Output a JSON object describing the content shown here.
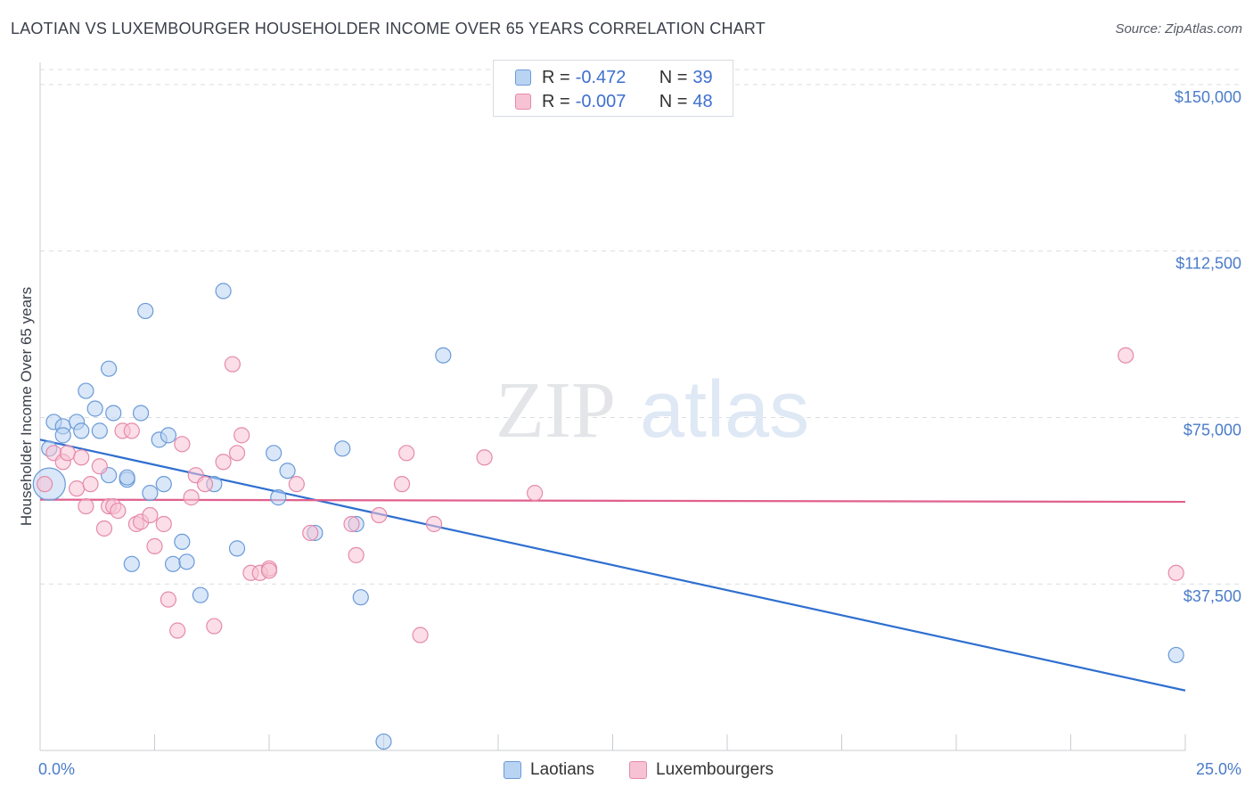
{
  "title": "LAOTIAN VS LUXEMBOURGER HOUSEHOLDER INCOME OVER 65 YEARS CORRELATION CHART",
  "source": "Source: ZipAtlas.com",
  "watermark": {
    "zip": "ZIP",
    "atlas": "atlas"
  },
  "colors": {
    "laotian_fill": "#b9d3f2",
    "laotian_stroke": "#6a9ad8",
    "laotian_line": "#2f6fd0",
    "lux_fill": "#f7c3d4",
    "lux_stroke": "#e58aab",
    "lux_line": "#e0608e",
    "tick_text": "#4a7cc9",
    "grid": "#d9dde3"
  },
  "legend": {
    "rows": [
      {
        "r_label": "R =",
        "r_value": "-0.472",
        "n_label": "N =",
        "n_value": "39"
      },
      {
        "r_label": "R =",
        "r_value": "-0.007",
        "n_label": "N =",
        "n_value": "48"
      }
    ],
    "bottom": [
      "Laotians",
      "Luxembourgers"
    ]
  },
  "chart_data": {
    "type": "scatter",
    "xlabel": "",
    "ylabel": "Householder Income Over 65 years",
    "xlim": [
      0,
      25
    ],
    "ylim": [
      0,
      155000
    ],
    "x_ticks_labels": [
      "0.0%",
      "25.0%"
    ],
    "y_ticks": [
      37500,
      75000,
      112500,
      150000
    ],
    "y_tick_labels": [
      "$37,500",
      "$75,000",
      "$112,500",
      "$150,000"
    ],
    "grid": "horizontal dashed",
    "legend_position": "top-center",
    "series": [
      {
        "name": "Laotians",
        "points": [
          [
            0.2,
            60000
          ],
          [
            0.2,
            68000
          ],
          [
            0.3,
            74000
          ],
          [
            0.5,
            73000
          ],
          [
            0.5,
            71000
          ],
          [
            0.8,
            74000
          ],
          [
            0.9,
            72000
          ],
          [
            1.0,
            81000
          ],
          [
            1.2,
            77000
          ],
          [
            1.3,
            72000
          ],
          [
            1.5,
            62000
          ],
          [
            1.5,
            86000
          ],
          [
            1.6,
            76000
          ],
          [
            1.9,
            61000
          ],
          [
            1.9,
            61500
          ],
          [
            2.0,
            42000
          ],
          [
            2.2,
            76000
          ],
          [
            2.3,
            99000
          ],
          [
            2.4,
            58000
          ],
          [
            2.6,
            70000
          ],
          [
            2.7,
            60000
          ],
          [
            2.8,
            71000
          ],
          [
            2.9,
            42000
          ],
          [
            3.1,
            47000
          ],
          [
            3.2,
            42500
          ],
          [
            3.5,
            35000
          ],
          [
            3.8,
            60000
          ],
          [
            4.0,
            103500
          ],
          [
            4.3,
            45500
          ],
          [
            5.1,
            67000
          ],
          [
            5.2,
            57000
          ],
          [
            5.4,
            63000
          ],
          [
            6.0,
            49000
          ],
          [
            6.6,
            68000
          ],
          [
            6.9,
            51000
          ],
          [
            7.0,
            34500
          ],
          [
            7.5,
            2000
          ],
          [
            8.8,
            89000
          ],
          [
            24.8,
            21500
          ]
        ]
      },
      {
        "name": "Luxembourgers",
        "points": [
          [
            0.1,
            60000
          ],
          [
            0.3,
            67000
          ],
          [
            0.5,
            65000
          ],
          [
            0.6,
            67000
          ],
          [
            0.8,
            59000
          ],
          [
            0.9,
            66000
          ],
          [
            1.0,
            55000
          ],
          [
            1.1,
            60000
          ],
          [
            1.3,
            64000
          ],
          [
            1.4,
            50000
          ],
          [
            1.5,
            55000
          ],
          [
            1.6,
            55000
          ],
          [
            1.7,
            54000
          ],
          [
            1.8,
            72000
          ],
          [
            2.0,
            72000
          ],
          [
            2.1,
            51000
          ],
          [
            2.2,
            51500
          ],
          [
            2.4,
            53000
          ],
          [
            2.5,
            46000
          ],
          [
            2.7,
            51000
          ],
          [
            2.8,
            34000
          ],
          [
            3.0,
            27000
          ],
          [
            3.1,
            69000
          ],
          [
            3.3,
            57000
          ],
          [
            3.4,
            62000
          ],
          [
            3.6,
            60000
          ],
          [
            3.8,
            28000
          ],
          [
            4.0,
            65000
          ],
          [
            4.2,
            87000
          ],
          [
            4.3,
            67000
          ],
          [
            4.4,
            71000
          ],
          [
            4.6,
            40000
          ],
          [
            4.8,
            40000
          ],
          [
            5.0,
            41000
          ],
          [
            5.0,
            40500
          ],
          [
            5.6,
            60000
          ],
          [
            5.9,
            49000
          ],
          [
            6.8,
            51000
          ],
          [
            6.9,
            44000
          ],
          [
            7.4,
            53000
          ],
          [
            7.9,
            60000
          ],
          [
            8.0,
            67000
          ],
          [
            8.3,
            26000
          ],
          [
            8.6,
            51000
          ],
          [
            9.7,
            66000
          ],
          [
            10.8,
            58000
          ],
          [
            23.7,
            89000
          ],
          [
            24.8,
            40000
          ]
        ]
      }
    ],
    "trend_lines": [
      {
        "series": "Laotians",
        "x": [
          0,
          25
        ],
        "y": [
          70000,
          13500
        ]
      },
      {
        "series": "Luxembourgers",
        "x": [
          0,
          25
        ],
        "y": [
          56500,
          56000
        ]
      }
    ]
  }
}
